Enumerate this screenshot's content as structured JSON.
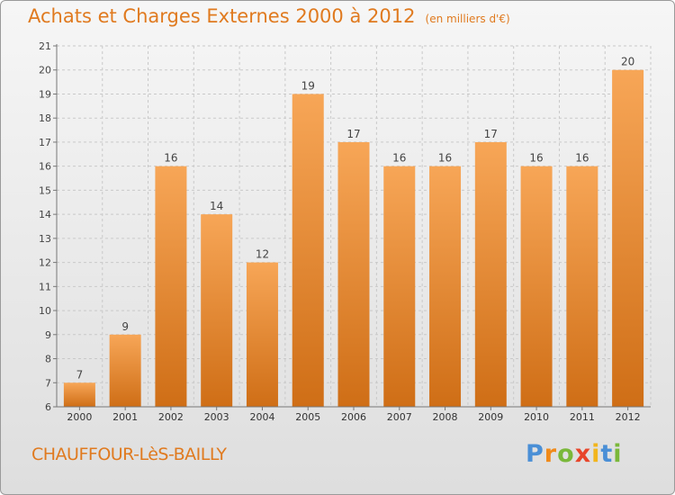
{
  "title": "Achats et Charges Externes 2000 à 2012",
  "subtitle": "(en milliers d'€)",
  "city": "CHAUFFOUR-LèS-BAILLY",
  "logo": {
    "p": "P",
    "r": "r",
    "o": "o",
    "x": "x",
    "i1": "i",
    "t": "t",
    "i2": "i"
  },
  "colors": {
    "bar_light": "#f7a657",
    "bar_dark": "#cf6e16",
    "accent": "#e07a1f"
  },
  "chart_data": {
    "type": "bar",
    "categories": [
      "2000",
      "2001",
      "2002",
      "2003",
      "2004",
      "2005",
      "2006",
      "2007",
      "2008",
      "2009",
      "2010",
      "2011",
      "2012"
    ],
    "values": [
      7,
      9,
      16,
      14,
      12,
      19,
      17,
      16,
      16,
      17,
      16,
      16,
      20
    ],
    "data_labels": [
      "7",
      "9",
      "16",
      "14",
      "12",
      "19",
      "17",
      "16",
      "16",
      "17",
      "16",
      "16",
      "20"
    ],
    "xlabel": "",
    "ylabel": "",
    "ylim": [
      6,
      21
    ],
    "yticks": [
      "6",
      "7",
      "8",
      "9",
      "10",
      "11",
      "12",
      "13",
      "14",
      "15",
      "16",
      "17",
      "18",
      "19",
      "20",
      "21"
    ],
    "grid": true
  }
}
